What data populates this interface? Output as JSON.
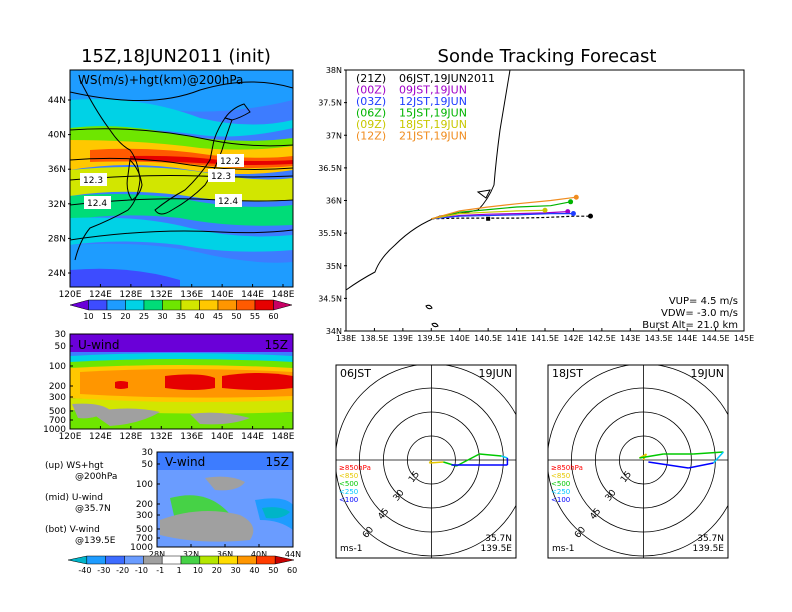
{
  "left_title": "15Z,18JUN2011 (init)",
  "right_title": "Sonde Tracking Forecast",
  "ws_panel": {
    "label": "WS(m/s)+hgt(km)@200hPa",
    "lat_labels": [
      "44N",
      "40N",
      "36N",
      "32N",
      "28N",
      "24N"
    ],
    "lon_labels": [
      "120E",
      "124E",
      "128E",
      "132E",
      "136E",
      "140E",
      "144E",
      "148E"
    ],
    "contour_labels": [
      "12.2",
      "12.3",
      "12.3",
      "12.4",
      "12.4"
    ],
    "colorbar_labels": [
      "10",
      "15",
      "20",
      "25",
      "30",
      "35",
      "40",
      "45",
      "50",
      "55",
      "60"
    ],
    "colorbar_colors": [
      "#6a00d8",
      "#3d4cff",
      "#1e9cff",
      "#00d2e6",
      "#00dc78",
      "#6ee600",
      "#d2e600",
      "#ffc800",
      "#ff9600",
      "#ff5a00",
      "#e60000",
      "#c80064"
    ]
  },
  "u_panel": {
    "label": "U-wind",
    "time": "15Z",
    "p_labels": [
      "30",
      "50",
      "100",
      "200",
      "300",
      "500",
      "700",
      "1000"
    ],
    "lon_labels": [
      "120E",
      "124E",
      "128E",
      "132E",
      "136E",
      "140E",
      "144E",
      "148E"
    ]
  },
  "v_panel": {
    "label": "V-wind",
    "time": "15Z",
    "p_labels": [
      "30",
      "50",
      "100",
      "200",
      "300",
      "500",
      "700",
      "1000"
    ],
    "lat_labels": [
      "28N",
      "32N",
      "36N",
      "40N",
      "44N"
    ]
  },
  "legend_notes": [
    {
      "title": "(up) WS+hgt",
      "sub": "@200hPa"
    },
    {
      "title": "(mid) U-wind",
      "sub": "@35.7N"
    },
    {
      "title": "(bot) V-wind",
      "sub": "@139.5E"
    }
  ],
  "bottom_colorbar": {
    "labels": [
      "-40",
      "-30",
      "-20",
      "-10",
      "-1",
      "1",
      "10",
      "20",
      "30",
      "40",
      "50",
      "60"
    ],
    "colors": [
      "#00b4c8",
      "#1e9cff",
      "#3d6cff",
      "#6a9cff",
      "#a0a0a0",
      "#ffffff",
      "#46d246",
      "#b4e600",
      "#ffdc00",
      "#ff9600",
      "#ff3c00",
      "#c80000"
    ]
  },
  "track_map": {
    "lat_labels": [
      "38N",
      "37.5N",
      "37N",
      "36.5N",
      "36N",
      "35.5N",
      "35N",
      "34.5N",
      "34N"
    ],
    "lon_labels": [
      "138E",
      "138.5E",
      "139E",
      "139.5E",
      "140E",
      "140.5E",
      "141E",
      "141.5E",
      "142E",
      "142.5E",
      "143E",
      "143.5E",
      "144E",
      "144.5E",
      "145E"
    ],
    "legend": [
      {
        "utc": "(21Z)",
        "jst": "06JST,19JUN2011",
        "color": "#000000"
      },
      {
        "utc": "(00Z)",
        "jst": "09JST,19JUN",
        "color": "#a000c8"
      },
      {
        "utc": "(03Z)",
        "jst": "12JST,19JUN",
        "color": "#1e3cff"
      },
      {
        "utc": "(06Z)",
        "jst": "15JST,19JUN",
        "color": "#00b400"
      },
      {
        "utc": "(09Z)",
        "jst": "18JST,19JUN",
        "color": "#c8c800"
      },
      {
        "utc": "(12Z)",
        "jst": "21JST,19JUN",
        "color": "#f08c1e"
      }
    ],
    "vup": "VUP= 4.5 m/s",
    "vdw": "VDW= -3.0 m/s",
    "burst": "Burst Alt= 21.0 km"
  },
  "chart_data": [
    {
      "type": "line",
      "title": "Sonde Tracking Forecast",
      "xlabel": "",
      "ylabel": "",
      "xlim": [
        138,
        145
      ],
      "ylim": [
        34,
        38
      ],
      "series": [
        {
          "name": "06JST,19JUN2011",
          "color": "#000000",
          "x": [
            139.5,
            140.0,
            140.5,
            141.0,
            141.5,
            142.0,
            142.3
          ],
          "y": [
            35.72,
            35.73,
            35.73,
            35.73,
            35.74,
            35.76,
            35.76
          ]
        },
        {
          "name": "09JST,19JUN",
          "color": "#a000c8",
          "x": [
            139.5,
            140.0,
            140.5,
            141.0,
            141.5,
            141.9
          ],
          "y": [
            35.72,
            35.77,
            35.79,
            35.8,
            35.81,
            35.83
          ]
        },
        {
          "name": "12JST,19JUN",
          "color": "#1e3cff",
          "x": [
            139.5,
            140.0,
            140.5,
            141.0,
            141.6,
            142.0
          ],
          "y": [
            35.72,
            35.76,
            35.77,
            35.78,
            35.8,
            35.8
          ]
        },
        {
          "name": "15JST,19JUN",
          "color": "#00b400",
          "x": [
            139.5,
            140.0,
            140.5,
            141.0,
            141.6,
            141.95
          ],
          "y": [
            35.72,
            35.82,
            35.86,
            35.9,
            35.92,
            35.98
          ]
        },
        {
          "name": "18JST,19JUN",
          "color": "#c8c800",
          "x": [
            139.5,
            140.0,
            140.5,
            141.0,
            141.5
          ],
          "y": [
            35.72,
            35.8,
            35.82,
            35.84,
            35.85
          ]
        },
        {
          "name": "21JST,19JUN",
          "color": "#f08c1e",
          "x": [
            139.5,
            140.0,
            140.5,
            141.0,
            141.6,
            142.05
          ],
          "y": [
            35.72,
            35.84,
            35.9,
            35.95,
            36.0,
            36.05
          ]
        }
      ]
    }
  ],
  "hodographs": [
    {
      "time": "06JST",
      "date": "19JUN",
      "lat": "35.7N",
      "lon": "139.5E",
      "unit": "ms-1",
      "ring_labels": [
        "15",
        "30",
        "45",
        "60"
      ],
      "pressure_legend": [
        {
          "text": "≥850hPa",
          "color": "#ff0000"
        },
        {
          "text": "<850",
          "color": "#e6c800"
        },
        {
          "text": "<500",
          "color": "#00c800"
        },
        {
          "text": "<250",
          "color": "#00c8ff"
        },
        {
          "text": "<100",
          "color": "#0000ff"
        }
      ]
    },
    {
      "time": "18JST",
      "date": "19JUN",
      "lat": "35.7N",
      "lon": "139.5E",
      "unit": "ms-1",
      "ring_labels": [
        "15",
        "30",
        "45",
        "60"
      ],
      "pressure_legend": [
        {
          "text": "≥850hPa",
          "color": "#ff0000"
        },
        {
          "text": "<850",
          "color": "#e6c800"
        },
        {
          "text": "<500",
          "color": "#00c800"
        },
        {
          "text": "<250",
          "color": "#00c8ff"
        },
        {
          "text": "<100",
          "color": "#0000ff"
        }
      ]
    }
  ]
}
